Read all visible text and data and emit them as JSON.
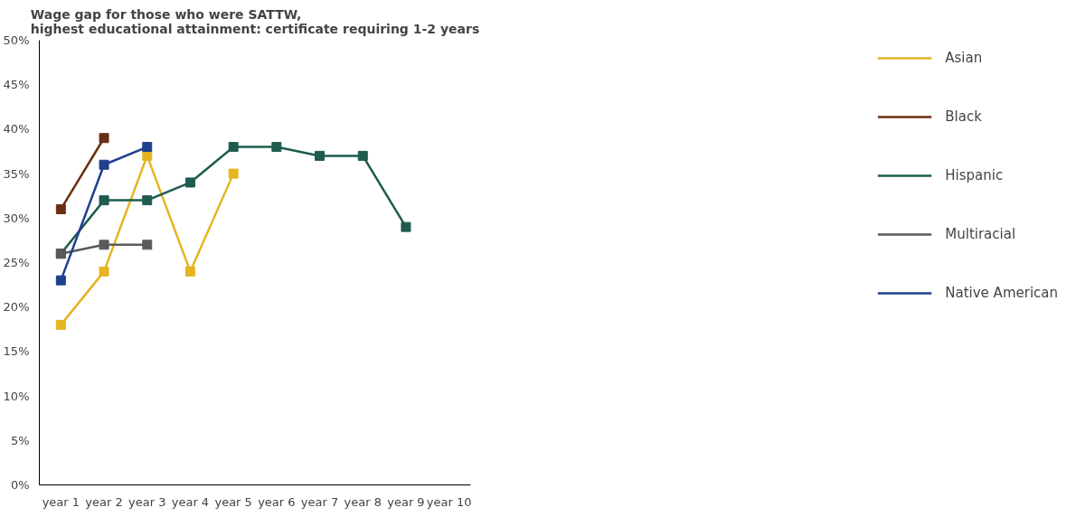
{
  "chart_data": {
    "type": "line",
    "title": "Wage gap for those who were SATTW,\nhighest educational attainment: certificate requiring 1-2 years",
    "categories": [
      "year 1",
      "year 2",
      "year 3",
      "year 4",
      "year 5",
      "year 6",
      "year 7",
      "year 8",
      "year 9",
      "year 10"
    ],
    "series": [
      {
        "name": "Asian",
        "color": "#e6b422",
        "values": [
          18,
          24,
          37,
          24,
          35,
          null,
          null,
          null,
          null,
          null
        ]
      },
      {
        "name": "Black",
        "color": "#6b2e12",
        "values": [
          31,
          39,
          null,
          null,
          null,
          null,
          null,
          null,
          null,
          null
        ]
      },
      {
        "name": "Hispanic",
        "color": "#1d5c4f",
        "values": [
          26,
          32,
          32,
          34,
          38,
          38,
          37,
          37,
          29,
          null
        ]
      },
      {
        "name": "Multiracial",
        "color": "#5a5a5a",
        "values": [
          26,
          27,
          27,
          null,
          null,
          null,
          null,
          null,
          null,
          null
        ]
      },
      {
        "name": "Native American",
        "color": "#1f3f8f",
        "values": [
          23,
          36,
          38,
          null,
          null,
          null,
          null,
          null,
          null,
          null
        ]
      }
    ],
    "ylim": [
      0,
      50
    ],
    "yticks": [
      {
        "value": 0,
        "label": "0%"
      },
      {
        "value": 5,
        "label": "5%"
      },
      {
        "value": 10,
        "label": "10%"
      },
      {
        "value": 15,
        "label": "15%"
      },
      {
        "value": 20,
        "label": "20%"
      },
      {
        "value": 25,
        "label": "25%"
      },
      {
        "value": 30,
        "label": "30%"
      },
      {
        "value": 35,
        "label": "35%"
      },
      {
        "value": 40,
        "label": "40%"
      },
      {
        "value": 45,
        "label": "45%"
      },
      {
        "value": 50,
        "label": "50%"
      }
    ],
    "grid": false,
    "legend": "right",
    "marker": "square",
    "line_style": "solid"
  }
}
